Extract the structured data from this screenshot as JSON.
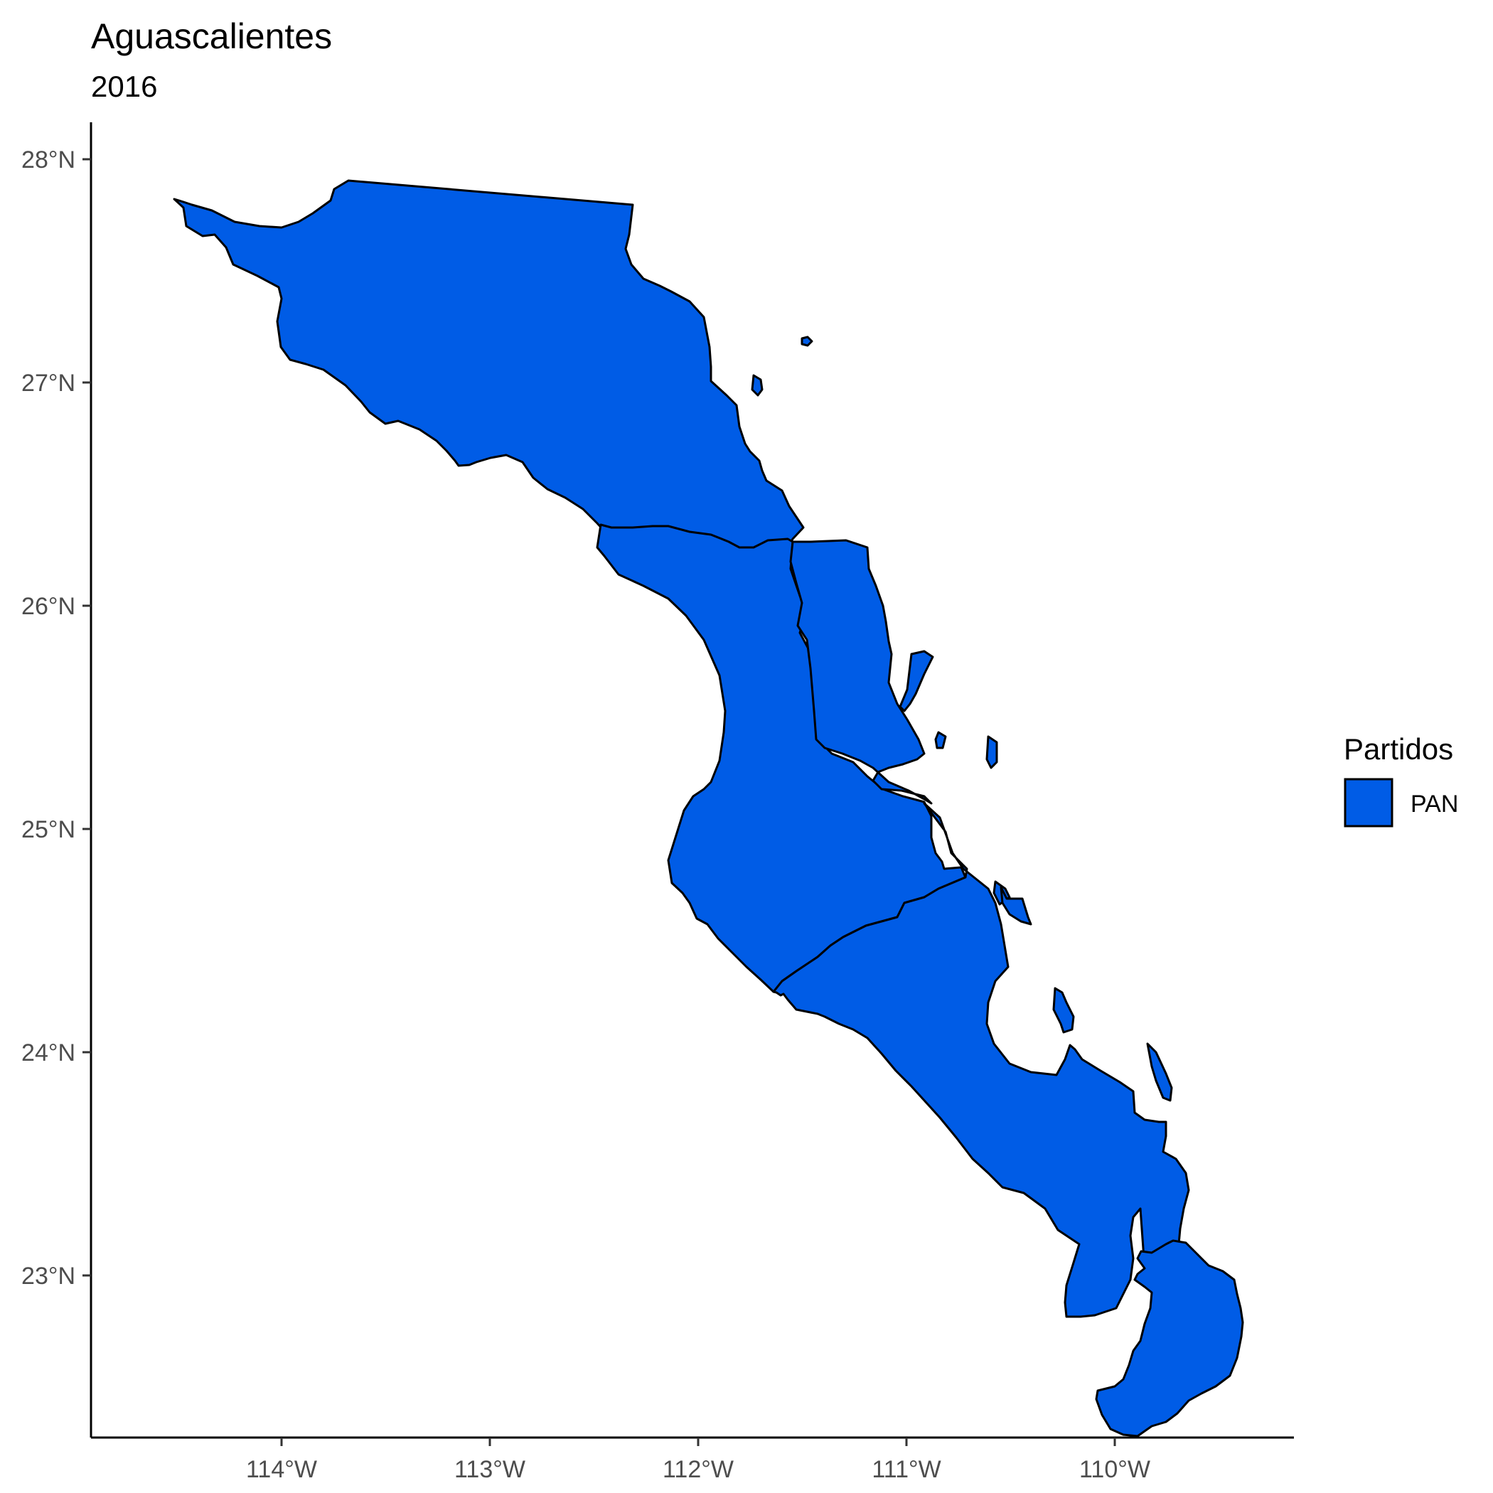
{
  "chart_data": {
    "type": "map",
    "title": "Aguascalientes",
    "subtitle": "2016",
    "x_ticks": [
      {
        "value": -114,
        "label": "114°W"
      },
      {
        "value": -113,
        "label": "113°W"
      },
      {
        "value": -112,
        "label": "112°W"
      },
      {
        "value": -111,
        "label": "111°W"
      },
      {
        "value": -110,
        "label": "110°W"
      }
    ],
    "y_ticks": [
      {
        "value": 28,
        "label": "28°N"
      },
      {
        "value": 27,
        "label": "27°N"
      },
      {
        "value": 26,
        "label": "26°N"
      },
      {
        "value": 25,
        "label": "25°N"
      },
      {
        "value": 24,
        "label": "24°N"
      },
      {
        "value": 23,
        "label": "23°N"
      }
    ],
    "legend": {
      "title": "Partidos",
      "placement": "right",
      "items": [
        {
          "label": "PAN",
          "color": "#005ce6"
        }
      ]
    },
    "fill_color": "#005ce6",
    "border_color": "#000000"
  }
}
